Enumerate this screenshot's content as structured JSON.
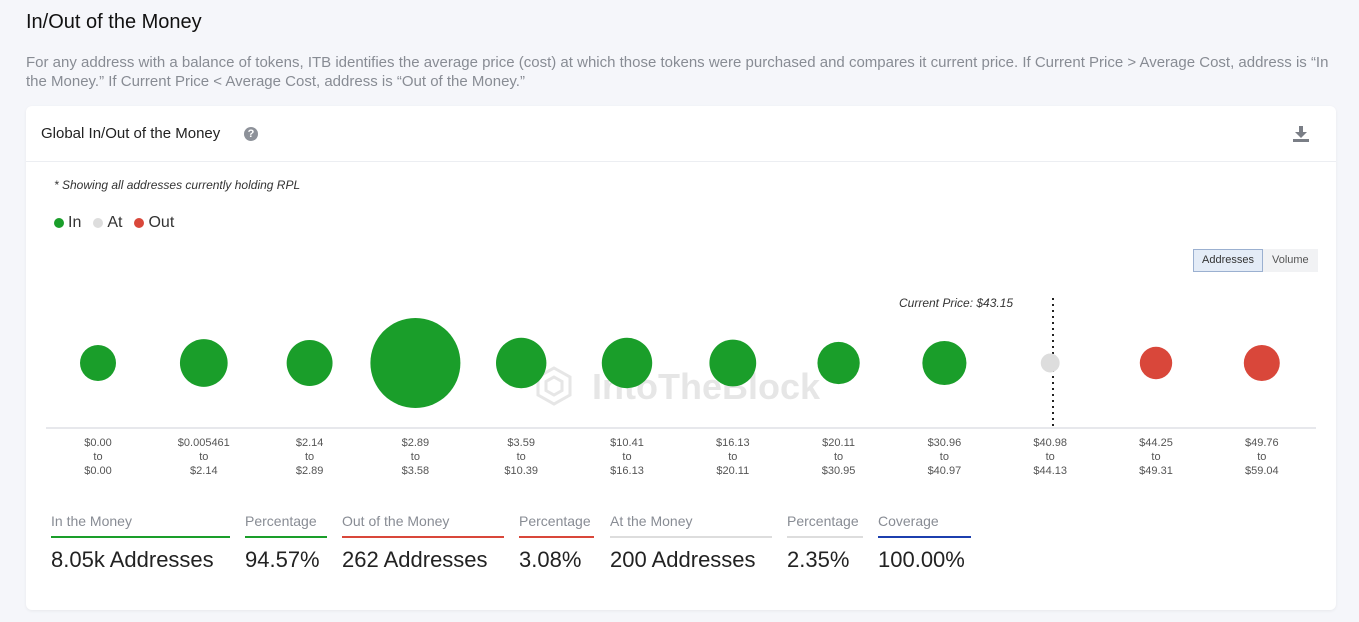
{
  "page": {
    "title": "In/Out of the Money",
    "description": "For any address with a balance of tokens, ITB identifies the average price (cost) at which those tokens were purchased and compares it current price. If Current Price > Average Cost, address is “In the Money.” If Current Price < Average Cost, address is “Out of the Money.”"
  },
  "card": {
    "title": "Global In/Out of the Money",
    "help_icon": "question-circle-icon",
    "download_icon": "download-icon",
    "note": "* Showing all addresses currently holding RPL"
  },
  "legend": [
    {
      "label": "In",
      "color": "#1a9e2a"
    },
    {
      "label": "At",
      "color": "#dddddd"
    },
    {
      "label": "Out",
      "color": "#d9473a"
    }
  ],
  "toggle": {
    "addresses": "Addresses",
    "volume": "Volume",
    "selected": "Addresses"
  },
  "watermark": "IntoTheBlock",
  "current_price_label": "Current Price: $43.15",
  "chart_data": {
    "type": "bubble",
    "categories": [
      {
        "from": "$0.00",
        "to": "$0.00",
        "status": "in"
      },
      {
        "from": "$0.005461",
        "to": "$2.14",
        "status": "in"
      },
      {
        "from": "$2.14",
        "to": "$2.89",
        "status": "in"
      },
      {
        "from": "$2.89",
        "to": "$3.58",
        "status": "in"
      },
      {
        "from": "$3.59",
        "to": "$10.39",
        "status": "in"
      },
      {
        "from": "$10.41",
        "to": "$16.13",
        "status": "in"
      },
      {
        "from": "$16.13",
        "to": "$20.11",
        "status": "in"
      },
      {
        "from": "$20.11",
        "to": "$30.95",
        "status": "in"
      },
      {
        "from": "$30.96",
        "to": "$40.97",
        "status": "in"
      },
      {
        "from": "$40.98",
        "to": "$44.13",
        "status": "at"
      },
      {
        "from": "$44.25",
        "to": "$49.31",
        "status": "out"
      },
      {
        "from": "$49.76",
        "to": "$59.04",
        "status": "out"
      }
    ],
    "relative_size": [
      0.4,
      0.53,
      0.51,
      1.0,
      0.56,
      0.56,
      0.52,
      0.47,
      0.49,
      0.21,
      0.36,
      0.4
    ],
    "to_word": "to",
    "current_price": 43.15
  },
  "stats": [
    {
      "label": "In the Money",
      "value": "8.05k Addresses",
      "color": "#1a9e2a"
    },
    {
      "label": "Percentage",
      "value": "94.57%",
      "color": "#1a9e2a"
    },
    {
      "label": "Out of the Money",
      "value": "262 Addresses",
      "color": "#d9473a"
    },
    {
      "label": "Percentage",
      "value": "3.08%",
      "color": "#d9473a"
    },
    {
      "label": "At the Money",
      "value": "200 Addresses",
      "color": "#dddddd"
    },
    {
      "label": "Percentage",
      "value": "2.35%",
      "color": "#dddddd"
    },
    {
      "label": "Coverage",
      "value": "100.00%",
      "color": "#1c3fae"
    }
  ]
}
